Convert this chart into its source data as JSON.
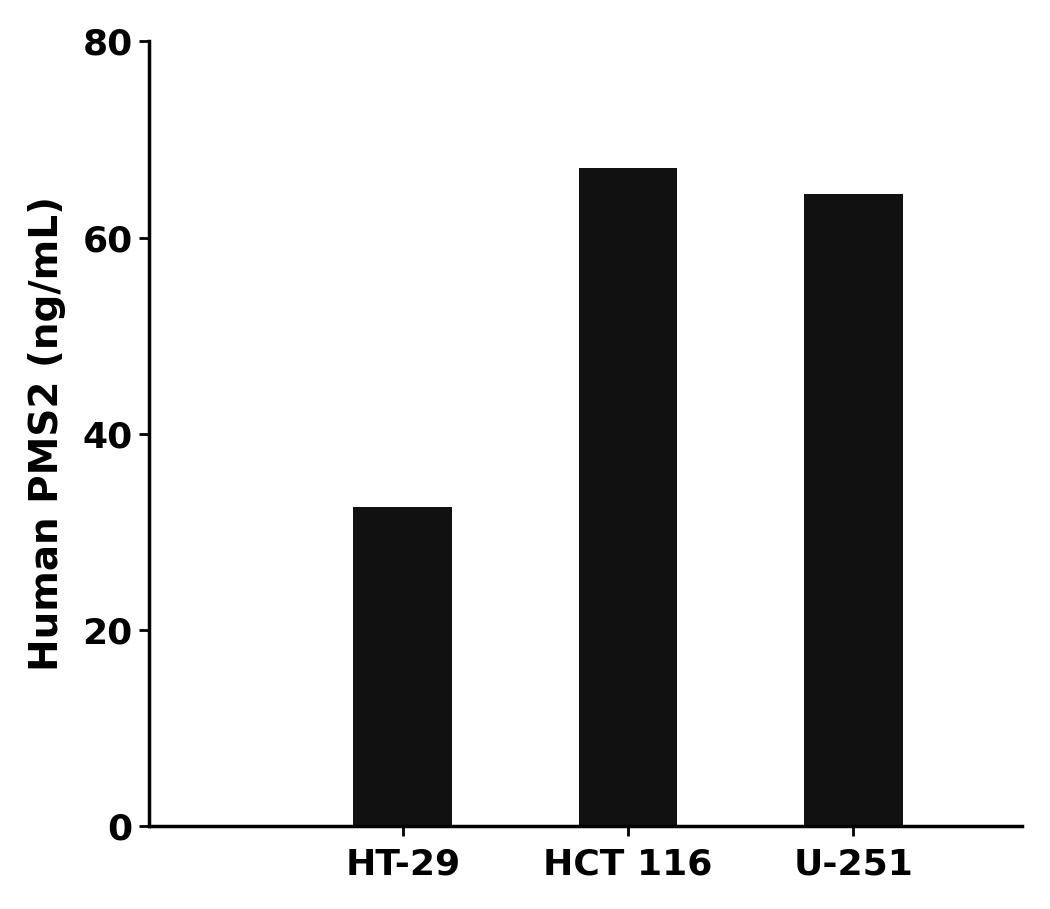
{
  "categories": [
    "HT-29",
    "HCT 116",
    "U-251"
  ],
  "values": [
    32.56,
    67.06,
    64.46
  ],
  "bar_color": "#111111",
  "ylabel": "Human PMS2 (ng/mL)",
  "ylim": [
    0,
    80
  ],
  "yticks": [
    0,
    20,
    40,
    60,
    80
  ],
  "bar_width": 0.35,
  "background_color": "#ffffff",
  "ylabel_fontsize": 28,
  "tick_label_fontsize": 26,
  "xlim": [
    -0.3,
    2.8
  ],
  "bar_positions": [
    0.6,
    1.4,
    2.2
  ]
}
